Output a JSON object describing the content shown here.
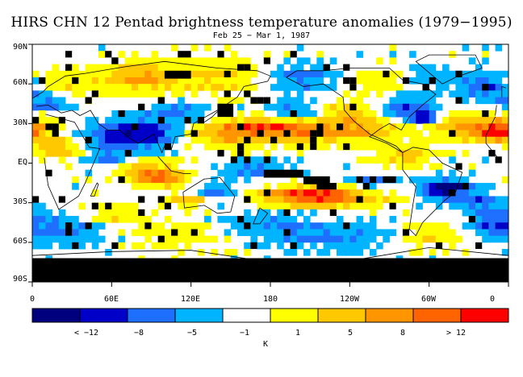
{
  "title": "HIRS CHN 12 Pentad brightness temperature anomalies (1979−1995)",
  "subtitle": "Feb 25 − Mar 1, 1987",
  "lat_labels": [
    "90N",
    "60N",
    "30N",
    "EQ",
    "30S",
    "60S",
    "90S"
  ],
  "lon_labels": [
    "0",
    "60E",
    "120E",
    "180",
    "120W",
    "60W",
    "0"
  ],
  "colorbar": {
    "colors": [
      "#00007f",
      "#0000c8",
      "#1f6fff",
      "#00b4ff",
      "#ffffff",
      "#ffff00",
      "#ffc800",
      "#ff9600",
      "#ff6400",
      "#ff0000"
    ],
    "labels": [
      "< −12",
      "−8",
      "−5",
      "−1",
      "1",
      "5",
      "8",
      "> 12"
    ],
    "unit": "K"
  },
  "map_colors": {
    "missing": "#000000",
    "coast": "#000000"
  }
}
